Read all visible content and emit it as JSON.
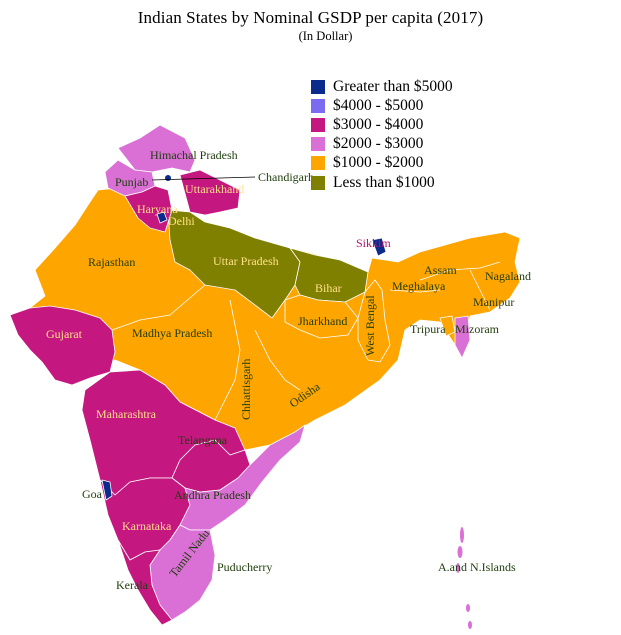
{
  "title": "Indian States by Nominal GSDP per capita (2017)",
  "subtitle": "(In Dollar)",
  "colors": {
    "gt5000": "#0a2a8c",
    "4000_5000": "#7b6bf0",
    "3000_4000": "#c4177f",
    "2000_3000": "#da70d6",
    "1000_2000": "#ffa500",
    "lt1000": "#808000"
  },
  "legend": [
    {
      "label": "Greater than $5000",
      "color": "#0a2a8c"
    },
    {
      "label": "$4000 - $5000",
      "color": "#7b6bf0"
    },
    {
      "label": "$3000 - $4000",
      "color": "#c4177f"
    },
    {
      "label": "$2000 - $3000",
      "color": "#da70d6"
    },
    {
      "label": "$1000 - $2000",
      "color": "#ffa500"
    },
    {
      "label": "Less than $1000",
      "color": "#808000"
    }
  ],
  "states": {
    "himachal": "Himachal Pradesh",
    "chandigarh": "Chandigarh",
    "punjab": "Punjab",
    "uttarakhand": "Uttarakhand",
    "haryana": "Haryana",
    "delhi": "Delhi",
    "rajasthan": "Rajasthan",
    "uttar_pradesh": "Uttar Pradesh",
    "sikkim": "Sikkim",
    "assam": "Assam",
    "nagaland": "Nagaland",
    "meghalaya": "Meghalaya",
    "bihar": "Bihar",
    "manipur": "Manipur",
    "west_bengal": "West Bengal",
    "jharkhand": "Jharkhand",
    "tripura": "Tripura",
    "mizoram": "Mizoram",
    "gujarat": "Gujarat",
    "madhya_pradesh": "Madhya Pradesh",
    "chhattisgarh": "Chhattisgarh",
    "odisha": "Odisha",
    "maharashtra": "Maharashtra",
    "telangana": "Telangana",
    "goa": "Goa",
    "andhra_pradesh": "Andhra Pradesh",
    "karnataka": "Karnataka",
    "tamil_nadu": "Tamil Nadu",
    "puducherry": "Puducherry",
    "kerala": "Kerala",
    "andaman": "A.and N.Islands"
  }
}
